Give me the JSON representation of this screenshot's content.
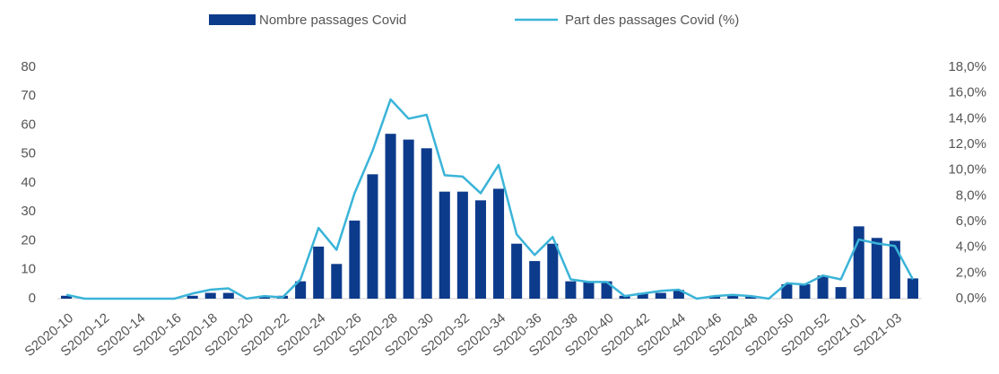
{
  "chart_data": {
    "type": "bar-line",
    "categories": [
      "S2020-10",
      null,
      "S2020-12",
      null,
      "S2020-14",
      null,
      "S2020-16",
      null,
      "S2020-18",
      null,
      "S2020-20",
      null,
      "S2020-22",
      null,
      "S2020-24",
      null,
      "S2020-26",
      null,
      "S2020-28",
      null,
      "S2020-30",
      null,
      "S2020-32",
      null,
      "S2020-34",
      null,
      "S2020-36",
      null,
      "S2020-38",
      null,
      "S2020-40",
      null,
      "S2020-42",
      null,
      "S2020-44",
      null,
      "S2020-46",
      null,
      "S2020-48",
      null,
      "S2020-50",
      null,
      "S2020-52",
      null,
      "S2021-01",
      null,
      "S2021-03",
      null
    ],
    "series": [
      {
        "name": "Nombre passages Covid",
        "type": "bar",
        "color": "#0d3b8c",
        "values": [
          1,
          0,
          0,
          0,
          0,
          0,
          0,
          1,
          2,
          2,
          0,
          1,
          1,
          6,
          18,
          12,
          27,
          43,
          57,
          55,
          52,
          37,
          37,
          34,
          38,
          19,
          13,
          19,
          6,
          6,
          6,
          1,
          2,
          2,
          3,
          0,
          1,
          1,
          1,
          0,
          5,
          5,
          8,
          4,
          25,
          21,
          20,
          7
        ]
      },
      {
        "name": "Part des passages Covid (%)",
        "type": "line",
        "axis": "y2",
        "color": "#3ab4d8",
        "values": [
          0.3,
          0,
          0,
          0,
          0,
          0,
          0,
          0.4,
          0.7,
          0.8,
          0,
          0.2,
          0.1,
          1.5,
          5.5,
          3.8,
          8.2,
          11.5,
          15.5,
          14.0,
          14.3,
          9.6,
          9.5,
          8.2,
          10.4,
          5.0,
          3.4,
          4.8,
          1.5,
          1.3,
          1.3,
          0.2,
          0.4,
          0.6,
          0.7,
          0,
          0.2,
          0.3,
          0.2,
          0,
          1.2,
          1.1,
          1.8,
          1.5,
          4.6,
          4.3,
          4.1,
          1.5
        ]
      }
    ],
    "ylim": [
      0,
      80
    ],
    "yticks": [
      0,
      10,
      20,
      30,
      40,
      50,
      60,
      70,
      80
    ],
    "y2lim": [
      0,
      18
    ],
    "y2ticks": [
      {
        "value": 0,
        "label": "0,0%"
      },
      {
        "value": 2,
        "label": "2,0%"
      },
      {
        "value": 4,
        "label": "4,0%"
      },
      {
        "value": 6,
        "label": "6,0%"
      },
      {
        "value": 8,
        "label": "8,0%"
      },
      {
        "value": 10,
        "label": "10,0%"
      },
      {
        "value": 12,
        "label": "12,0%"
      },
      {
        "value": 14,
        "label": "14,0%"
      },
      {
        "value": 16,
        "label": "16,0%"
      },
      {
        "value": 18,
        "label": "18,0%"
      }
    ],
    "legend": "top"
  }
}
